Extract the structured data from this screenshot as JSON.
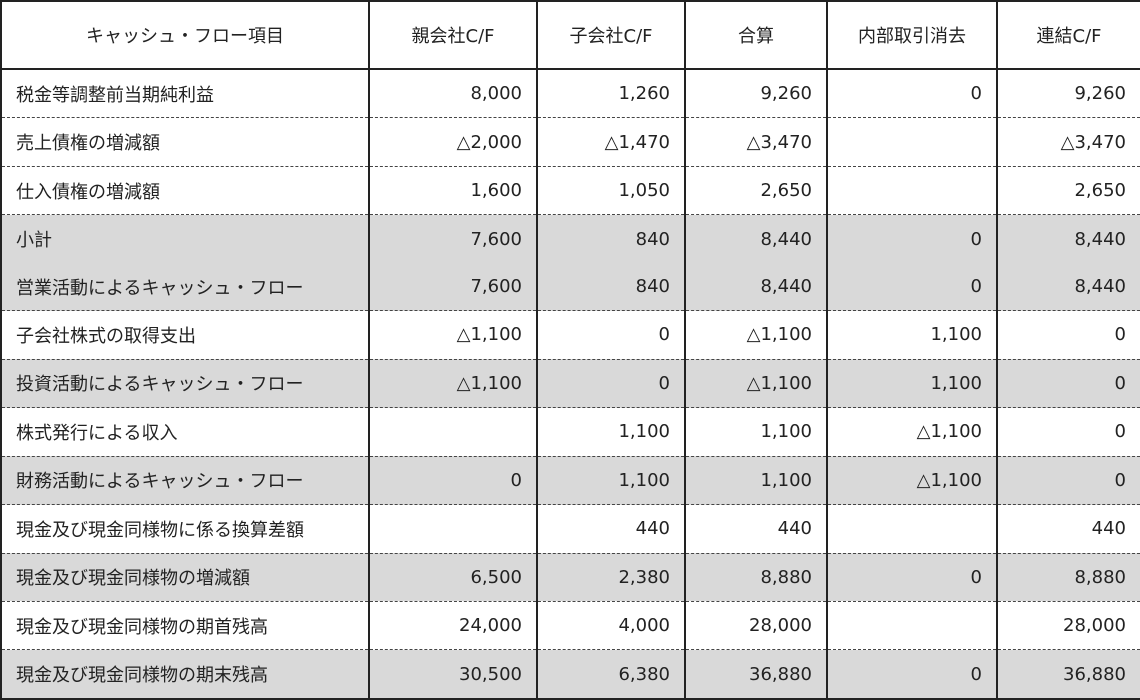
{
  "headers": [
    "キャッシュ・フロー項目",
    "親会社C/F",
    "子会社C/F",
    "合算",
    "内部取引消去",
    "連結C/F"
  ],
  "rows": [
    {
      "label": "税金等調整前当期純利益",
      "values": [
        "8,000",
        "1,260",
        "9,260",
        "0",
        "9,260"
      ],
      "shaded": false
    },
    {
      "label": "売上債権の増減額",
      "values": [
        "△2,000",
        "△1,470",
        "△3,470",
        "",
        "△3,470"
      ],
      "shaded": false
    },
    {
      "label": "仕入債権の増減額",
      "values": [
        "1,600",
        "1,050",
        "2,650",
        "",
        "2,650"
      ],
      "shaded": false
    },
    {
      "label": "小計",
      "values": [
        "7,600",
        "840",
        "8,440",
        "0",
        "8,440"
      ],
      "shaded": true
    },
    {
      "label": "営業活動によるキャッシュ・フロー",
      "values": [
        "7,600",
        "840",
        "8,440",
        "0",
        "8,440"
      ],
      "shaded": true
    },
    {
      "label": "子会社株式の取得支出",
      "values": [
        "△1,100",
        "0",
        "△1,100",
        "1,100",
        "0"
      ],
      "shaded": false
    },
    {
      "label": "投資活動によるキャッシュ・フロー",
      "values": [
        "△1,100",
        "0",
        "△1,100",
        "1,100",
        "0"
      ],
      "shaded": true
    },
    {
      "label": "株式発行による収入",
      "values": [
        "",
        "1,100",
        "1,100",
        "△1,100",
        "0"
      ],
      "shaded": false
    },
    {
      "label": "財務活動によるキャッシュ・フロー",
      "values": [
        "0",
        "1,100",
        "1,100",
        "△1,100",
        "0"
      ],
      "shaded": true
    },
    {
      "label": "現金及び現金同様物に係る換算差額",
      "values": [
        "",
        "440",
        "440",
        "",
        "440"
      ],
      "shaded": false
    },
    {
      "label": "現金及び現金同様物の増減額",
      "values": [
        "6,500",
        "2,380",
        "8,880",
        "0",
        "8,880"
      ],
      "shaded": true
    },
    {
      "label": "現金及び現金同様物の期首残高",
      "values": [
        "24,000",
        "4,000",
        "28,000",
        "",
        "28,000"
      ],
      "shaded": false
    },
    {
      "label": "現金及び現金同様物の期末残高",
      "values": [
        "30,500",
        "6,380",
        "36,880",
        "0",
        "36,880"
      ],
      "shaded": true
    }
  ],
  "colors": {
    "shade": "#d9d9d9",
    "border": "#222222"
  }
}
